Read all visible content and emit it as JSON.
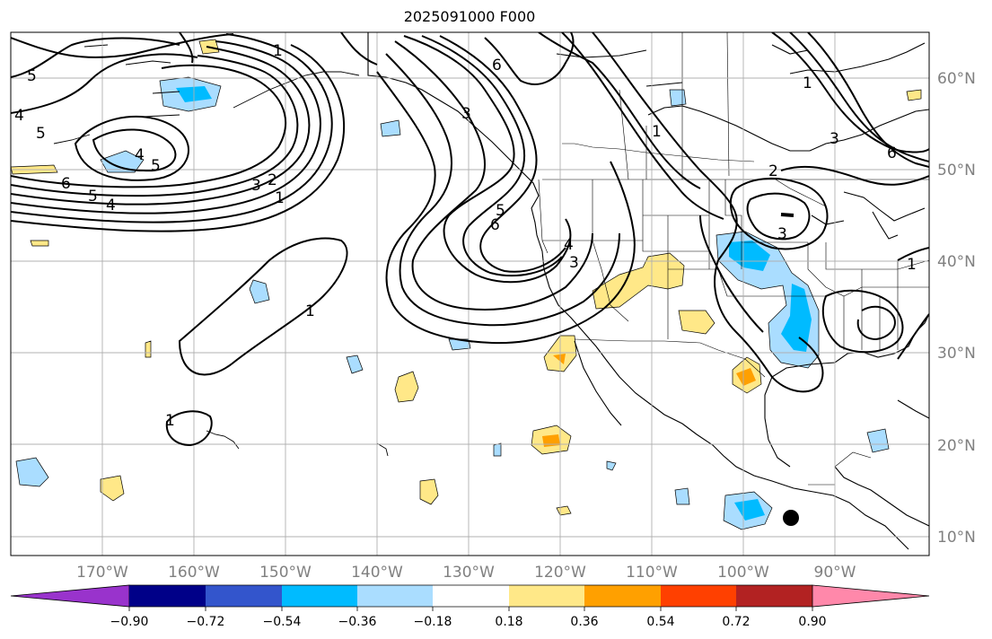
{
  "title": "2025091000 F000",
  "lat_labels": [
    "60°N",
    "50°N",
    "40°N",
    "30°N",
    "20°N",
    "10°N"
  ],
  "lon_labels": [
    "170°W",
    "160°W",
    "150°W",
    "140°W",
    "130°W",
    "120°W",
    "110°W",
    "100°W",
    "90°W"
  ],
  "colorbar": {
    "tick_labels": [
      "−0.90",
      "−0.72",
      "−0.54",
      "−0.36",
      "−0.18",
      "0.18",
      "0.36",
      "0.54",
      "0.72",
      "0.90"
    ],
    "colors": [
      "#9933cc",
      "#000088",
      "#3355cc",
      "#00bbff",
      "#aaddff",
      "#ffffff",
      "#ffe888",
      "#ffa000",
      "#ff4000",
      "#b22222",
      "#ff88aa"
    ]
  },
  "contour_labels": [
    "5",
    "4",
    "5",
    "4",
    "5",
    "6",
    "5",
    "4",
    "3",
    "2",
    "1",
    "1",
    "1",
    "6",
    "5",
    "3",
    "4",
    "3",
    "1",
    "2",
    "3",
    "1",
    "1",
    "6",
    "3",
    "1",
    "6"
  ],
  "colors": {
    "grid": "#b0b0b0",
    "land_border": "#000000",
    "contour": "#000000",
    "marker": "#000000"
  }
}
